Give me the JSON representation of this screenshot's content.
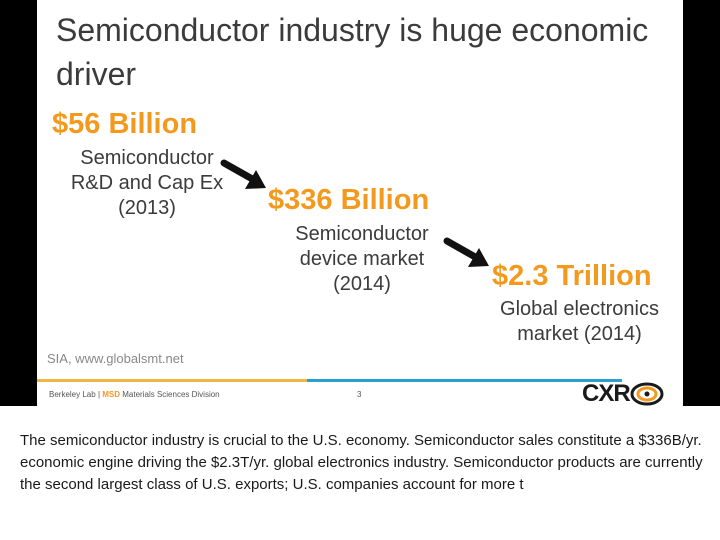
{
  "slide": {
    "title": "Semiconductor industry is huge economic driver",
    "stages": [
      {
        "value": "$56 Billion",
        "lines": [
          "Semiconductor",
          "R&D and Cap Ex",
          "(2013)"
        ]
      },
      {
        "value": "$336 Billion",
        "lines": [
          "Semiconductor",
          "device market",
          "(2014)"
        ]
      },
      {
        "value": "$2.3 Trillion",
        "lines": [
          "Global electronics",
          "market (2014)"
        ]
      }
    ],
    "source": "SIA, www.globalsmt.net",
    "footer": {
      "lab": "Berkeley Lab",
      "separator": "|",
      "division_code": "MSD",
      "division_name": "Materials Sciences Division",
      "page_number": "3"
    },
    "logo_text": "CXR"
  },
  "caption": "The semiconductor industry is crucial to the U.S. economy. Semiconductor sales constitute a $336B/yr. economic engine driving the $2.3T/yr. global electronics industry. Semiconductor products are currently the second largest class of U.S. exports; U.S. companies account for more t",
  "colors": {
    "accent_orange": "#f39a1e",
    "rule_blue": "#2c9fd1",
    "text_dark": "#3b3b3b"
  }
}
